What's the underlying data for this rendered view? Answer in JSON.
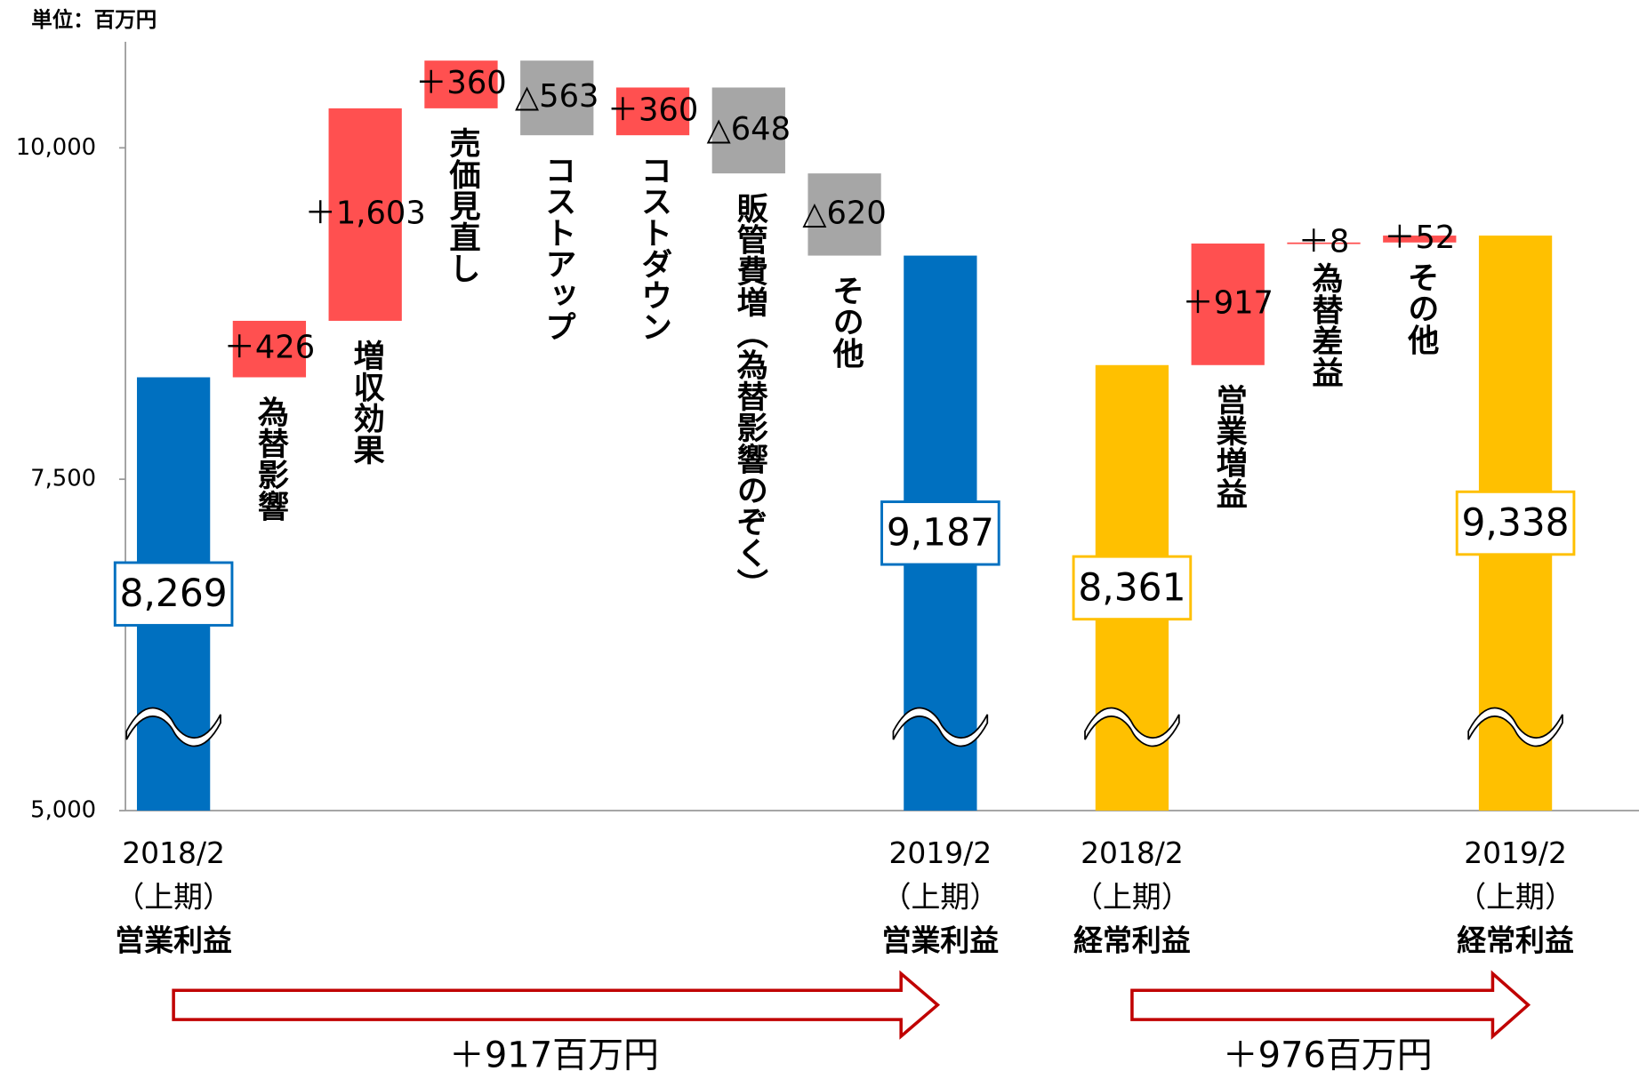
{
  "chart_data": {
    "type": "waterfall",
    "unit_label": "単位：百万円",
    "categories": [
      [
        "2018/2",
        "（上期）",
        "営業利益"
      ],
      "為替影響",
      "増収効果",
      "売価見直し",
      "コストアップ",
      "コストダウン",
      "販管費増（為替影響のぞく）",
      "その他",
      [
        "2019/2",
        "（上期）",
        "営業利益"
      ],
      [
        "2018/2",
        "（上期）",
        "経常利益"
      ],
      "営業増益",
      "為替差益",
      "その他",
      [
        "2019/2",
        "（上期）",
        "経常利益"
      ]
    ],
    "measures": [
      "total",
      "relative",
      "relative",
      "relative",
      "relative",
      "relative",
      "relative",
      "relative",
      "total",
      "total",
      "relative",
      "relative",
      "relative",
      "total"
    ],
    "values": [
      8269,
      426,
      1603,
      360,
      -563,
      360,
      -648,
      -620,
      9187,
      8361,
      917,
      8,
      52,
      9338
    ],
    "value_labels": [
      "8,269",
      "＋426",
      "＋1,603",
      "＋360",
      "△563",
      "＋360",
      "△648",
      "△620",
      "9,187",
      "8,361",
      "＋917",
      "＋8",
      "＋52",
      "9,338"
    ],
    "colors": [
      "#0070c0",
      "#ff5050",
      "#ff5050",
      "#ff5050",
      "#a6a6a6",
      "#ff5050",
      "#a6a6a6",
      "#a6a6a6",
      "#0070c0",
      "#ffc000",
      "#ff5050",
      "#ff5050",
      "#ff5050",
      "#ffc000"
    ],
    "ylim": [
      5000,
      10800
    ],
    "yticks": [
      {
        "value": 5000,
        "label": "5,000"
      },
      {
        "value": 7500,
        "label": "7,500"
      },
      {
        "value": 10000,
        "label": "10,000"
      }
    ],
    "annotations": [
      "＋917百万円",
      "＋976百万円"
    ]
  }
}
